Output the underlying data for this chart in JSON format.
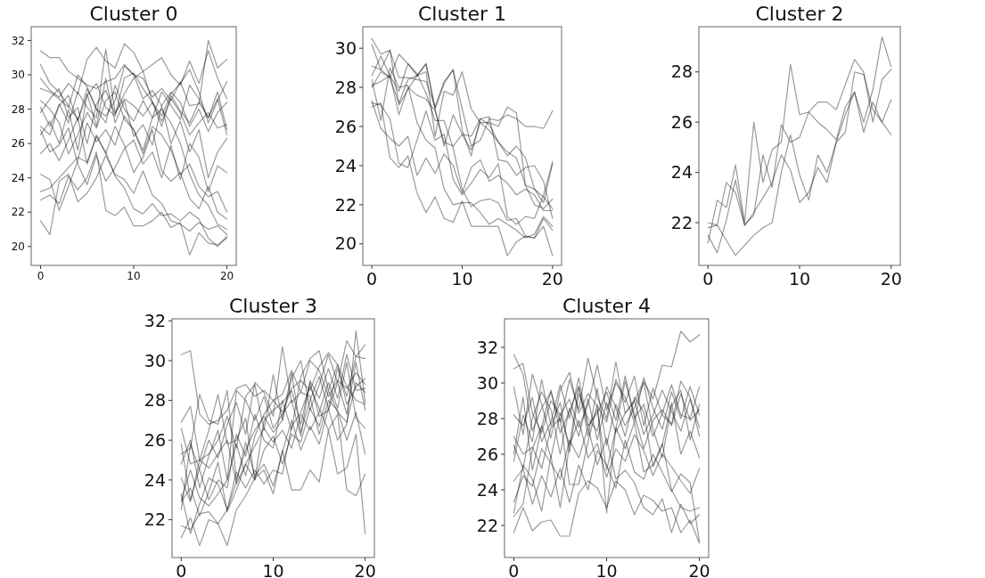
{
  "chart_data": [
    {
      "type": "line",
      "title": "Cluster 0",
      "x": [
        0,
        1,
        2,
        3,
        4,
        5,
        6,
        7,
        8,
        9,
        10,
        11,
        12,
        13,
        14,
        15,
        16,
        17,
        18,
        19,
        20
      ],
      "xlim": [
        -1,
        21
      ],
      "xticks": [
        0,
        10,
        20
      ],
      "ylim": [
        18.9,
        32.8
      ],
      "yticks": [
        20,
        22,
        24,
        26,
        28,
        30,
        32
      ],
      "color": "#000000",
      "series": [
        {
          "values": [
            27.0,
            26.5,
            28.3,
            27.2,
            29.0,
            28.1,
            27.5,
            31.5,
            27.8,
            28.6,
            28.2,
            27.6,
            28.4,
            27.0,
            28.8,
            27.9,
            27.2,
            28.4,
            27.5,
            28.6,
            26.5
          ]
        },
        {
          "values": [
            30.6,
            29.5,
            29.0,
            28.2,
            27.4,
            28.8,
            29.5,
            28.1,
            27.6,
            29.8,
            30.1,
            29.2,
            28.4,
            27.6,
            28.9,
            29.5,
            30.3,
            29.0,
            27.2,
            28.5,
            29.6
          ]
        },
        {
          "values": [
            24.2,
            23.9,
            22.1,
            23.5,
            25.0,
            27.2,
            26.1,
            26.8,
            25.9,
            27.6,
            26.8,
            25.4,
            27.0,
            26.5,
            25.6,
            24.2,
            24.8,
            23.5,
            22.9,
            23.2,
            22.0
          ]
        },
        {
          "values": [
            21.5,
            20.7,
            23.8,
            24.2,
            22.6,
            23.1,
            24.0,
            25.3,
            24.2,
            23.9,
            23.1,
            24.4,
            23.0,
            22.5,
            21.5,
            21.3,
            20.9,
            21.4,
            21.0,
            21.2,
            20.7
          ]
        },
        {
          "values": [
            31.4,
            31.0,
            31.0,
            30.2,
            29.8,
            29.4,
            29.2,
            29.6,
            29.8,
            30.6,
            30.0,
            29.8,
            28.7,
            29.2,
            28.5,
            29.6,
            28.2,
            28.3,
            32.0,
            30.4,
            30.9
          ]
        },
        {
          "values": [
            26.5,
            27.3,
            26.0,
            28.0,
            25.6,
            28.9,
            27.0,
            29.8,
            27.2,
            28.5,
            26.4,
            27.1,
            25.9,
            28.2,
            26.0,
            27.3,
            25.5,
            26.8,
            24.0,
            25.5,
            26.3
          ]
        },
        {
          "values": [
            28.5,
            28.0,
            27.2,
            25.4,
            26.5,
            27.8,
            26.9,
            28.5,
            29.0,
            27.4,
            26.8,
            25.6,
            27.5,
            28.0,
            27.2,
            26.0,
            24.2,
            23.0,
            22.4,
            21.3,
            21.0
          ]
        },
        {
          "values": [
            29.2,
            29.0,
            28.6,
            28.1,
            30.0,
            29.3,
            28.0,
            27.6,
            28.5,
            30.5,
            30.0,
            28.6,
            29.1,
            28.2,
            29.0,
            28.4,
            27.0,
            28.0,
            26.7,
            27.8,
            28.4
          ]
        },
        {
          "values": [
            23.2,
            23.4,
            24.0,
            24.6,
            25.2,
            24.9,
            26.4,
            25.5,
            24.1,
            23.4,
            22.2,
            21.9,
            22.5,
            21.8,
            21.9,
            21.5,
            22.0,
            21.6,
            20.5,
            20.0,
            20.6
          ]
        },
        {
          "values": [
            27.8,
            28.6,
            29.2,
            27.5,
            28.1,
            26.0,
            28.3,
            29.1,
            27.7,
            28.9,
            29.8,
            30.2,
            28.4,
            27.3,
            28.6,
            27.8,
            26.5,
            27.2,
            27.8,
            26.9,
            27.1
          ]
        },
        {
          "values": [
            25.4,
            26.0,
            25.0,
            26.2,
            27.5,
            24.8,
            26.5,
            25.4,
            27.0,
            25.9,
            24.3,
            25.2,
            26.8,
            24.4,
            23.8,
            24.3,
            22.8,
            22.2,
            23.5,
            22.0,
            21.6
          ]
        },
        {
          "values": [
            29.8,
            29.1,
            28.7,
            29.5,
            28.9,
            30.9,
            31.6,
            30.8,
            30.4,
            31.8,
            31.3,
            30.2,
            30.6,
            31.0,
            30.0,
            29.4,
            30.8,
            29.5,
            31.4,
            29.8,
            28.6
          ]
        },
        {
          "values": [
            26.8,
            25.5,
            25.9,
            26.9,
            24.8,
            23.6,
            25.3,
            23.8,
            24.6,
            25.7,
            26.2,
            24.8,
            25.5,
            24.0,
            25.9,
            23.9,
            26.0,
            25.2,
            23.2,
            24.7,
            24.3
          ]
        },
        {
          "values": [
            22.7,
            23.0,
            22.5,
            24.1,
            23.3,
            24.0,
            25.5,
            22.1,
            21.8,
            22.3,
            21.2,
            21.2,
            21.5,
            22.0,
            21.1,
            21.4,
            19.5,
            20.8,
            20.2,
            20.1,
            20.5
          ]
        },
        {
          "values": [
            28.1,
            27.0,
            28.2,
            28.8,
            27.3,
            29.2,
            28.0,
            27.2,
            29.4,
            28.0,
            27.3,
            28.5,
            27.5,
            29.0,
            28.2,
            27.4,
            29.4,
            28.6,
            27.5,
            29.0,
            26.8
          ]
        }
      ]
    },
    {
      "type": "line",
      "title": "Cluster 1",
      "x": [
        0,
        1,
        2,
        3,
        4,
        5,
        6,
        7,
        8,
        9,
        10,
        11,
        12,
        13,
        14,
        15,
        16,
        17,
        18,
        19,
        20
      ],
      "xlim": [
        -1,
        21
      ],
      "xticks": [
        0,
        10,
        20
      ],
      "ylim": [
        18.9,
        31.1
      ],
      "yticks": [
        20,
        22,
        24,
        26,
        28,
        30
      ],
      "color": "#000000",
      "series": [
        {
          "values": [
            27.2,
            27.1,
            26.4,
            24.1,
            23.9,
            25.3,
            26.8,
            25.3,
            25.6,
            23.3,
            22.5,
            23.1,
            23.8,
            23.4,
            24.1,
            21.4,
            21.0,
            21.4,
            21.3,
            22.5,
            24.2
          ]
        },
        {
          "values": [
            30.5,
            29.7,
            29.9,
            28.5,
            28.5,
            28.4,
            28.3,
            27.0,
            28.3,
            28.9,
            26.9,
            25.0,
            25.3,
            26.4,
            26.3,
            26.6,
            26.4,
            26.0,
            26.0,
            25.9,
            26.8
          ]
        },
        {
          "values": [
            30.2,
            28.9,
            28.5,
            27.2,
            28.4,
            28.6,
            29.2,
            26.9,
            25.0,
            26.6,
            25.6,
            25.5,
            26.4,
            26.1,
            25.2,
            24.7,
            24.4,
            23.0,
            22.8,
            22.4,
            21.8
          ]
        },
        {
          "values": [
            29.1,
            28.9,
            29.9,
            27.1,
            27.9,
            28.6,
            29.2,
            26.9,
            28.2,
            28.9,
            25.8,
            24.5,
            26.4,
            26.5,
            24.3,
            24.2,
            23.5,
            23.9,
            24.0,
            23.2,
            21.3
          ]
        },
        {
          "values": [
            28.4,
            26.3,
            29.0,
            28.0,
            28.1,
            26.2,
            25.3,
            24.9,
            22.8,
            22.0,
            22.1,
            22.1,
            21.6,
            21.0,
            21.3,
            21.0,
            20.7,
            20.3,
            20.5,
            21.4,
            20.9
          ]
        },
        {
          "values": [
            28.0,
            28.8,
            28.5,
            29.7,
            29.2,
            28.7,
            27.7,
            26.3,
            26.3,
            24.9,
            22.8,
            21.9,
            22.2,
            22.3,
            22.1,
            21.2,
            21.3,
            20.4,
            20.3,
            21.3,
            20.7
          ]
        },
        {
          "values": [
            27.0,
            27.2,
            24.4,
            23.9,
            24.5,
            22.6,
            21.6,
            22.4,
            21.3,
            21.1,
            22.2,
            20.9,
            20.9,
            20.9,
            20.9,
            19.4,
            20.1,
            20.4,
            20.3,
            20.9,
            19.4
          ]
        },
        {
          "values": [
            27.3,
            25.9,
            25.4,
            25.0,
            25.5,
            23.5,
            24.4,
            23.6,
            24.6,
            24.0,
            22.6,
            23.9,
            24.3,
            23.2,
            23.5,
            23.1,
            22.5,
            22.8,
            22.5,
            21.7,
            21.7
          ]
        },
        {
          "values": [
            28.6,
            29.6,
            28.6,
            27.8,
            29.2,
            28.6,
            28.8,
            25.5,
            27.8,
            27.6,
            28.8,
            26.9,
            26.2,
            25.8,
            25.2,
            24.5,
            25.0,
            24.4,
            22.8,
            22.1,
            24.1
          ]
        },
        {
          "values": [
            28.1,
            28.3,
            28.6,
            26.6,
            28.0,
            27.6,
            27.4,
            26.8,
            25.2,
            25.0,
            25.6,
            24.8,
            26.2,
            26.2,
            26.0,
            27.0,
            26.7,
            23.0,
            22.0,
            21.8,
            22.3
          ]
        }
      ]
    },
    {
      "type": "line",
      "title": "Cluster 2",
      "x": [
        0,
        1,
        2,
        3,
        4,
        5,
        6,
        7,
        8,
        9,
        10,
        11,
        12,
        13,
        14,
        15,
        16,
        17,
        18,
        19,
        20
      ],
      "xlim": [
        -1,
        21
      ],
      "xticks": [
        0,
        10,
        20
      ],
      "ylim": [
        20.3,
        29.8
      ],
      "yticks": [
        22,
        24,
        26,
        28
      ],
      "color": "#000000",
      "series": [
        {
          "values": [
            21.2,
            22.9,
            22.6,
            24.3,
            22.0,
            26.0,
            23.6,
            24.9,
            25.2,
            28.3,
            26.3,
            26.4,
            26.8,
            26.8,
            26.5,
            27.5,
            28.5,
            28.0,
            26.0,
            27.7,
            28.1
          ]
        },
        {
          "values": [
            21.8,
            21.9,
            21.3,
            20.7,
            21.1,
            21.5,
            21.8,
            22.0,
            24.0,
            25.5,
            23.9,
            22.9,
            24.7,
            24.0,
            25.2,
            25.6,
            28.0,
            27.9,
            26.5,
            26.0,
            25.5
          ]
        },
        {
          "values": [
            22.0,
            21.9,
            23.6,
            23.2,
            21.9,
            22.4,
            23.0,
            23.6,
            24.7,
            24.1,
            22.8,
            23.2,
            24.2,
            23.6,
            25.2,
            26.3,
            27.2,
            25.6,
            26.8,
            26.0,
            26.9
          ]
        },
        {
          "values": [
            21.5,
            20.8,
            22.1,
            23.7,
            21.9,
            22.3,
            24.7,
            23.4,
            25.9,
            25.2,
            25.4,
            26.4,
            26.0,
            25.7,
            25.3,
            26.6,
            27.2,
            26.0,
            27.3,
            29.4,
            28.2
          ]
        }
      ]
    },
    {
      "type": "line",
      "title": "Cluster 3",
      "x": [
        0,
        1,
        2,
        3,
        4,
        5,
        6,
        7,
        8,
        9,
        10,
        11,
        12,
        13,
        14,
        15,
        16,
        17,
        18,
        19,
        20
      ],
      "xlim": [
        -1,
        21
      ],
      "xticks": [
        0,
        10,
        20
      ],
      "ylim": [
        20.1,
        32.1
      ],
      "yticks": [
        22,
        24,
        26,
        28,
        30,
        32
      ],
      "color": "#000000",
      "series": [
        {
          "values": [
            30.3,
            30.5,
            27.3,
            26.8,
            27.0,
            27.5,
            28.6,
            28.8,
            28.2,
            28.5,
            28.0,
            28.3,
            29.5,
            28.4,
            30.0,
            29.5,
            28.2,
            29.0,
            28.6,
            29.4,
            28.8
          ]
        },
        {
          "values": [
            22.9,
            23.6,
            22.2,
            23.4,
            24.9,
            22.4,
            23.5,
            24.8,
            24.0,
            25.5,
            26.2,
            24.8,
            26.3,
            25.9,
            27.6,
            26.7,
            28.5,
            27.4,
            26.9,
            28.9,
            28.4
          ]
        },
        {
          "values": [
            25.3,
            25.6,
            28.3,
            27.0,
            26.8,
            28.5,
            24.0,
            25.5,
            26.5,
            27.2,
            26.4,
            27.0,
            29.4,
            26.4,
            28.0,
            29.2,
            27.6,
            29.6,
            28.2,
            30.2,
            30.1
          ]
        },
        {
          "values": [
            21.1,
            22.1,
            20.7,
            22.0,
            21.8,
            20.7,
            22.5,
            23.2,
            24.1,
            24.5,
            23.3,
            25.5,
            23.5,
            23.5,
            24.5,
            23.9,
            26.5,
            24.3,
            24.6,
            26.3,
            21.3
          ]
        },
        {
          "values": [
            23.0,
            24.5,
            23.1,
            22.7,
            23.3,
            24.0,
            25.8,
            24.2,
            26.2,
            27.3,
            28.0,
            27.4,
            28.6,
            29.0,
            28.5,
            29.7,
            30.4,
            29.8,
            28.7,
            28.0,
            27.8
          ]
        },
        {
          "values": [
            26.6,
            24.8,
            25.0,
            26.5,
            28.3,
            25.8,
            26.0,
            27.1,
            24.0,
            27.0,
            27.5,
            27.9,
            28.5,
            26.8,
            28.9,
            27.2,
            27.5,
            28.9,
            27.3,
            29.9,
            27.5
          ]
        },
        {
          "values": [
            22.5,
            25.8,
            24.5,
            23.0,
            24.0,
            23.6,
            26.3,
            25.2,
            27.3,
            26.0,
            25.6,
            28.0,
            26.5,
            29.2,
            30.1,
            30.5,
            28.5,
            29.8,
            27.8,
            28.7,
            29.1
          ]
        },
        {
          "values": [
            24.1,
            22.9,
            25.0,
            24.6,
            25.3,
            26.0,
            23.8,
            24.8,
            25.7,
            26.6,
            25.9,
            26.5,
            25.6,
            27.3,
            26.5,
            27.4,
            28.9,
            27.6,
            29.9,
            27.1,
            26.6
          ]
        },
        {
          "values": [
            21.7,
            21.5,
            22.3,
            22.4,
            21.8,
            22.5,
            23.9,
            25.9,
            24.2,
            24.8,
            23.7,
            25.4,
            27.0,
            25.5,
            26.7,
            25.8,
            27.6,
            26.0,
            26.8,
            31.5,
            27.9
          ]
        },
        {
          "values": [
            25.8,
            23.0,
            24.6,
            26.0,
            25.1,
            26.8,
            27.9,
            26.3,
            28.9,
            28.4,
            27.2,
            30.7,
            27.9,
            28.4,
            28.2,
            26.3,
            28.0,
            27.5,
            26.0,
            27.4,
            25.3
          ]
        },
        {
          "values": [
            23.3,
            21.3,
            22.8,
            24.1,
            23.8,
            22.5,
            24.4,
            23.6,
            24.5,
            23.8,
            24.5,
            24.3,
            26.7,
            27.4,
            28.7,
            27.6,
            26.5,
            27.3,
            23.5,
            23.2,
            24.3
          ]
        },
        {
          "values": [
            26.9,
            27.7,
            25.0,
            25.3,
            26.0,
            27.2,
            25.6,
            28.2,
            28.8,
            26.5,
            29.3,
            27.0,
            29.1,
            30.0,
            27.5,
            28.8,
            30.3,
            28.9,
            31.0,
            30.2,
            30.8
          ]
        },
        {
          "values": [
            24.8,
            26.0,
            23.6,
            25.2,
            26.5,
            24.0,
            28.5,
            28.0,
            27.0,
            28.2,
            26.6,
            27.3,
            28.0,
            26.2,
            29.0,
            28.1,
            29.6,
            28.1,
            30.3,
            28.5,
            28.6
          ]
        }
      ]
    },
    {
      "type": "line",
      "title": "Cluster 4",
      "x": [
        0,
        1,
        2,
        3,
        4,
        5,
        6,
        7,
        8,
        9,
        10,
        11,
        12,
        13,
        14,
        15,
        16,
        17,
        18,
        19,
        20
      ],
      "xlim": [
        -1,
        21
      ],
      "xticks": [
        0,
        10,
        20
      ],
      "ylim": [
        20.2,
        33.6
      ],
      "yticks": [
        22,
        24,
        26,
        28,
        30,
        32
      ],
      "color": "#000000",
      "series": [
        {
          "values": [
            31.6,
            30.5,
            27.3,
            28.6,
            29.5,
            27.8,
            30.2,
            28.5,
            31.4,
            29.2,
            28.0,
            31.2,
            28.3,
            29.0,
            30.1,
            29.1,
            31.0,
            30.9,
            32.9,
            32.3,
            32.7
          ]
        },
        {
          "values": [
            22.5,
            23.2,
            26.3,
            27.6,
            25.8,
            28.3,
            26.5,
            29.8,
            27.5,
            28.5,
            25.1,
            27.4,
            30.1,
            28.2,
            26.3,
            27.9,
            28.5,
            27.6,
            29.4,
            27.9,
            28.5
          ]
        },
        {
          "values": [
            27.0,
            26.0,
            26.4,
            25.2,
            27.5,
            28.0,
            24.3,
            24.3,
            26.7,
            28.8,
            22.7,
            27.5,
            26.3,
            27.8,
            25.0,
            25.4,
            26.6,
            24.0,
            23.0,
            22.8,
            23.0
          ]
        },
        {
          "values": [
            21.6,
            23.0,
            21.7,
            22.2,
            22.3,
            21.4,
            21.4,
            23.8,
            24.5,
            24.1,
            23.0,
            24.5,
            24.0,
            22.6,
            23.7,
            23.4,
            22.8,
            23.0,
            21.6,
            22.3,
            21.0
          ]
        },
        {
          "values": [
            30.8,
            31.1,
            28.3,
            27.2,
            29.0,
            28.2,
            29.1,
            27.5,
            28.8,
            31.0,
            28.5,
            30.0,
            29.2,
            27.8,
            30.3,
            28.6,
            27.4,
            29.5,
            28.0,
            29.8,
            28.2
          ]
        },
        {
          "values": [
            24.5,
            25.2,
            23.2,
            24.8,
            23.6,
            25.2,
            23.3,
            25.4,
            24.0,
            26.2,
            25.4,
            24.1,
            26.8,
            25.0,
            24.6,
            26.0,
            25.0,
            23.9,
            24.9,
            24.4,
            21.1
          ]
        },
        {
          "values": [
            26.5,
            25.2,
            28.0,
            29.5,
            28.5,
            26.0,
            28.6,
            27.0,
            29.1,
            26.8,
            28.9,
            27.2,
            28.3,
            29.0,
            27.1,
            28.2,
            29.6,
            28.4,
            27.3,
            29.1,
            27.5
          ]
        },
        {
          "values": [
            28.2,
            27.6,
            29.2,
            26.7,
            27.8,
            29.9,
            28.0,
            30.3,
            27.6,
            28.3,
            29.5,
            27.9,
            30.4,
            28.0,
            28.8,
            27.0,
            28.3,
            29.9,
            28.2,
            28.0,
            29.8
          ]
        },
        {
          "values": [
            23.3,
            24.8,
            24.2,
            26.3,
            25.5,
            24.6,
            26.8,
            25.8,
            27.5,
            25.4,
            26.9,
            24.6,
            25.1,
            24.4,
            23.0,
            22.6,
            23.5,
            21.6,
            23.2,
            22.1,
            22.6
          ]
        },
        {
          "values": [
            25.6,
            28.2,
            26.7,
            30.2,
            27.6,
            28.9,
            26.1,
            29.4,
            28.0,
            27.3,
            29.8,
            28.6,
            27.0,
            29.2,
            28.4,
            25.3,
            26.5,
            28.9,
            26.0,
            27.3,
            25.8
          ]
        },
        {
          "values": [
            29.8,
            27.1,
            30.5,
            28.8,
            26.9,
            29.6,
            30.6,
            28.3,
            29.4,
            28.7,
            27.8,
            30.2,
            28.9,
            30.4,
            27.6,
            29.7,
            28.2,
            27.7,
            30.1,
            29.2,
            27.0
          ]
        },
        {
          "values": [
            22.7,
            25.4,
            24.6,
            22.8,
            25.9,
            23.0,
            26.5,
            27.9,
            25.8,
            26.6,
            24.7,
            26.3,
            25.6,
            27.1,
            26.2,
            24.8,
            26.0,
            25.3,
            24.5,
            23.8,
            25.2
          ]
        },
        {
          "values": [
            26.0,
            29.2,
            25.1,
            27.5,
            29.6,
            27.2,
            28.4,
            29.8,
            27.0,
            29.7,
            26.5,
            28.8,
            27.6,
            28.6,
            30.0,
            27.4,
            25.8,
            28.7,
            29.6,
            26.8,
            28.8
          ]
        }
      ]
    }
  ]
}
